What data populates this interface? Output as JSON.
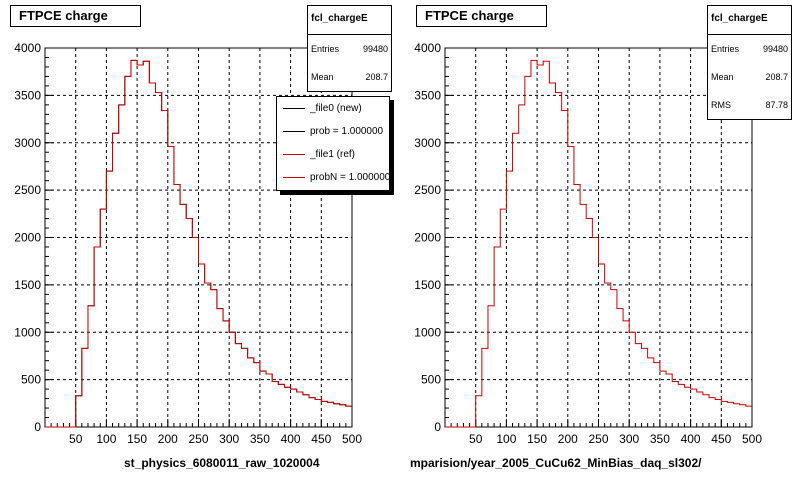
{
  "left_pad": {
    "title": "FTPCE charge",
    "stats": {
      "name": "fcl_chargeE",
      "rows": [
        [
          "Entries",
          "99480"
        ],
        [
          "Mean",
          "208.7"
        ]
      ]
    },
    "legend": [
      {
        "label": "_file0 (new)",
        "color": "#000000"
      },
      {
        "label": "prob = 1.000000",
        "color": "#000000"
      },
      {
        "label": "_file1 (ref)",
        "color": "#cc0000"
      },
      {
        "label": "probN = 1.000000",
        "color": "#cc0000"
      }
    ],
    "xtitle": "st_physics_6080011_raw_1020004"
  },
  "right_pad": {
    "title": "FTPCE charge",
    "stats": {
      "name": "fcl_chargeE",
      "rows": [
        [
          "Entries",
          "99480"
        ],
        [
          "Mean",
          "208.7"
        ],
        [
          "RMS",
          "87.78"
        ]
      ]
    },
    "xtitle": "mparision/year_2005_CuCu62_MinBias_daq_sl302/"
  },
  "colors": {
    "new": "#000000",
    "ref": "#cc0000",
    "grid": "#000000"
  },
  "chart_data": [
    {
      "type": "histogram",
      "title": "FTPCE charge",
      "xlabel": "st_physics_6080011_raw_1020004",
      "xlim": [
        0,
        500
      ],
      "ylim": [
        0,
        4000
      ],
      "xticks": [
        50,
        100,
        150,
        200,
        250,
        300,
        350,
        400,
        450,
        500
      ],
      "yticks": [
        0,
        500,
        1000,
        1500,
        2000,
        2500,
        3000,
        3500,
        4000
      ],
      "grid": true,
      "bin_width": 10,
      "bin_edges_start": 0,
      "series": [
        {
          "name": "_file0 (new)",
          "values": [
            0,
            0,
            0,
            0,
            0,
            330,
            830,
            1280,
            1900,
            2300,
            2700,
            3100,
            3400,
            3700,
            3870,
            3820,
            3860,
            3630,
            3530,
            3340,
            2960,
            2560,
            2350,
            2200,
            2000,
            1720,
            1520,
            1450,
            1250,
            1120,
            1000,
            880,
            830,
            730,
            680,
            590,
            560,
            480,
            450,
            420,
            400,
            370,
            340,
            310,
            290,
            270,
            260,
            245,
            235,
            220
          ]
        },
        {
          "name": "_file1 (ref)",
          "values": [
            0,
            0,
            0,
            0,
            0,
            330,
            830,
            1280,
            1900,
            2300,
            2700,
            3100,
            3400,
            3700,
            3870,
            3820,
            3860,
            3630,
            3530,
            3340,
            2960,
            2560,
            2350,
            2200,
            2000,
            1720,
            1520,
            1450,
            1250,
            1120,
            1000,
            880,
            830,
            730,
            680,
            590,
            560,
            480,
            450,
            420,
            400,
            370,
            340,
            310,
            290,
            270,
            260,
            245,
            235,
            220
          ]
        }
      ],
      "stats": {
        "Entries": 99480,
        "Mean": 208.7
      }
    },
    {
      "type": "histogram",
      "title": "FTPCE charge",
      "xlabel": "mparision/year_2005_CuCu62_MinBias_daq_sl302/",
      "xlim": [
        0,
        500
      ],
      "ylim": [
        0,
        4000
      ],
      "xticks": [
        50,
        100,
        150,
        200,
        250,
        300,
        350,
        400,
        450,
        500
      ],
      "yticks": [
        0,
        500,
        1000,
        1500,
        2000,
        2500,
        3000,
        3500,
        4000
      ],
      "grid": true,
      "bin_width": 10,
      "bin_edges_start": 0,
      "series": [
        {
          "values": [
            0,
            0,
            0,
            0,
            0,
            330,
            830,
            1280,
            1900,
            2300,
            2700,
            3100,
            3400,
            3700,
            3870,
            3820,
            3860,
            3630,
            3530,
            3340,
            2960,
            2560,
            2350,
            2200,
            2000,
            1720,
            1520,
            1450,
            1250,
            1120,
            1000,
            880,
            830,
            730,
            680,
            590,
            560,
            480,
            450,
            420,
            400,
            370,
            340,
            310,
            290,
            270,
            260,
            245,
            235,
            220
          ]
        }
      ],
      "stats": {
        "Entries": 99480,
        "Mean": 208.7,
        "RMS": 87.78
      }
    }
  ]
}
